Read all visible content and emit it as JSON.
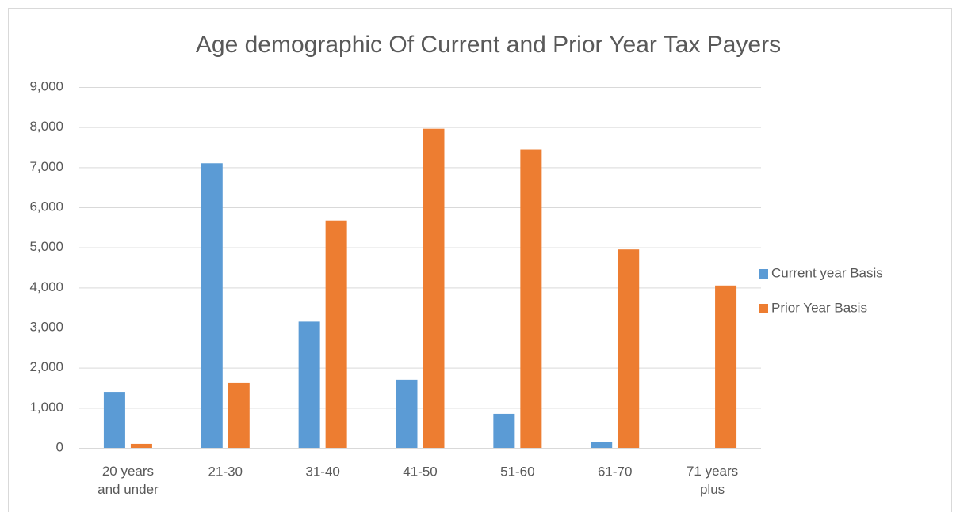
{
  "chart_data": {
    "type": "bar",
    "title": "Age demographic Of Current and Prior Year Tax Payers",
    "categories": [
      "20 years and under",
      "21-30",
      "31-40",
      "41-50",
      "51-60",
      "61-70",
      "71 years plus"
    ],
    "series": [
      {
        "name": "Current year Basis",
        "color": "#5b9bd5",
        "values": [
          1400,
          7100,
          3150,
          1700,
          850,
          150,
          0
        ]
      },
      {
        "name": "Prior Year Basis",
        "color": "#ed7d31",
        "values": [
          100,
          1620,
          5670,
          7960,
          7450,
          4950,
          4050
        ]
      }
    ],
    "ylim": [
      0,
      9000
    ],
    "yticks": [
      0,
      {
        "value": 1000,
        "label": "1,000"
      },
      {
        "value": 2000,
        "label": "2,000"
      },
      {
        "value": 3000,
        "label": "3,000"
      },
      {
        "value": 4000,
        "label": "4,000"
      },
      {
        "value": 5000,
        "label": "5,000"
      },
      {
        "value": 6000,
        "label": "6,000"
      },
      {
        "value": 7000,
        "label": "7,000"
      },
      {
        "value": 8000,
        "label": "8,000"
      },
      {
        "value": 9000,
        "label": "9,000"
      }
    ],
    "grid": true,
    "legend": "right"
  }
}
